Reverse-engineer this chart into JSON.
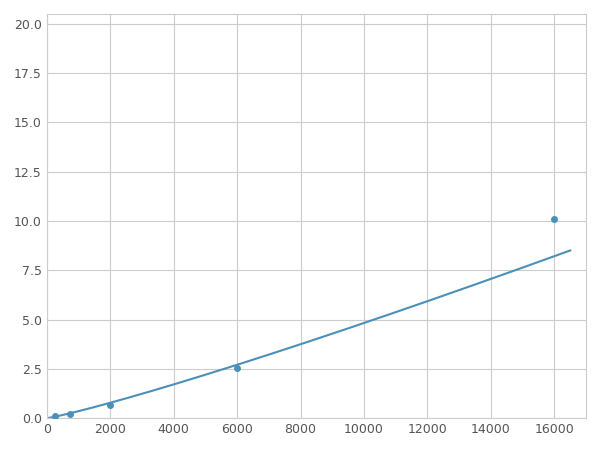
{
  "x_points": [
    250,
    750,
    2000,
    6000,
    16000
  ],
  "y_points": [
    0.1,
    0.2,
    0.65,
    2.55,
    10.1
  ],
  "line_color": "#4a90b8",
  "marker_color": "#4a90b8",
  "marker_size": 4,
  "line_width": 1.5,
  "xlim": [
    0,
    17000
  ],
  "ylim": [
    0,
    20.5
  ],
  "xticks": [
    0,
    2000,
    4000,
    6000,
    8000,
    10000,
    12000,
    14000,
    16000
  ],
  "yticks": [
    0.0,
    2.5,
    5.0,
    7.5,
    10.0,
    12.5,
    15.0,
    17.5,
    20.0
  ],
  "grid": true,
  "background_color": "#ffffff",
  "figure_background": "#ffffff"
}
